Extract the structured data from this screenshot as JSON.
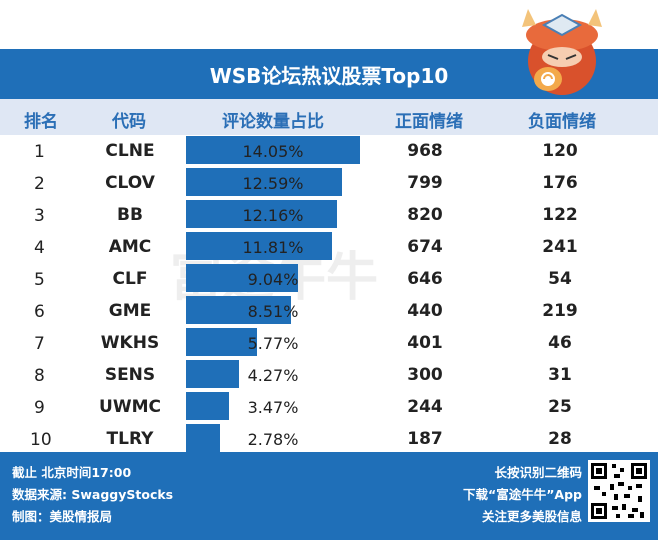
{
  "title": "WSB论坛热议股票Top10",
  "watermark": "富途牛牛",
  "headers": {
    "rank": "排名",
    "code": "代码",
    "pct": "评论数量占比",
    "pos": "正面情绪",
    "neg": "负面情绪"
  },
  "rows": [
    {
      "rank": "1",
      "code": "CLNE",
      "pct": "14.05%",
      "pct_value": 14.05,
      "pos": "968",
      "neg": "120"
    },
    {
      "rank": "2",
      "code": "CLOV",
      "pct": "12.59%",
      "pct_value": 12.59,
      "pos": "799",
      "neg": "176"
    },
    {
      "rank": "3",
      "code": "BB",
      "pct": "12.16%",
      "pct_value": 12.16,
      "pos": "820",
      "neg": "122"
    },
    {
      "rank": "4",
      "code": "AMC",
      "pct": "11.81%",
      "pct_value": 11.81,
      "pos": "674",
      "neg": "241"
    },
    {
      "rank": "5",
      "code": "CLF",
      "pct": "9.04%",
      "pct_value": 9.04,
      "pos": "646",
      "neg": "54"
    },
    {
      "rank": "6",
      "code": "GME",
      "pct": "8.51%",
      "pct_value": 8.51,
      "pos": "440",
      "neg": "219"
    },
    {
      "rank": "7",
      "code": "WKHS",
      "pct": "5.77%",
      "pct_value": 5.77,
      "pos": "401",
      "neg": "46"
    },
    {
      "rank": "8",
      "code": "SENS",
      "pct": "4.27%",
      "pct_value": 4.27,
      "pos": "300",
      "neg": "31"
    },
    {
      "rank": "9",
      "code": "UWMC",
      "pct": "3.47%",
      "pct_value": 3.47,
      "pos": "244",
      "neg": "25"
    },
    {
      "rank": "10",
      "code": "TLRY",
      "pct": "2.78%",
      "pct_value": 2.78,
      "pos": "187",
      "neg": "28"
    }
  ],
  "footer": {
    "left": [
      "截止 北京时间17:00",
      "数据来源: SwaggyStocks",
      "制图：美股情报局"
    ],
    "right": [
      "长按识别二维码",
      "下载“富途牛牛”App",
      "关注更多美股信息"
    ]
  },
  "colors": {
    "accent": "#1f6fb8",
    "header_bg": "#dfe7f4",
    "header_text": "#2b6fb6"
  }
}
